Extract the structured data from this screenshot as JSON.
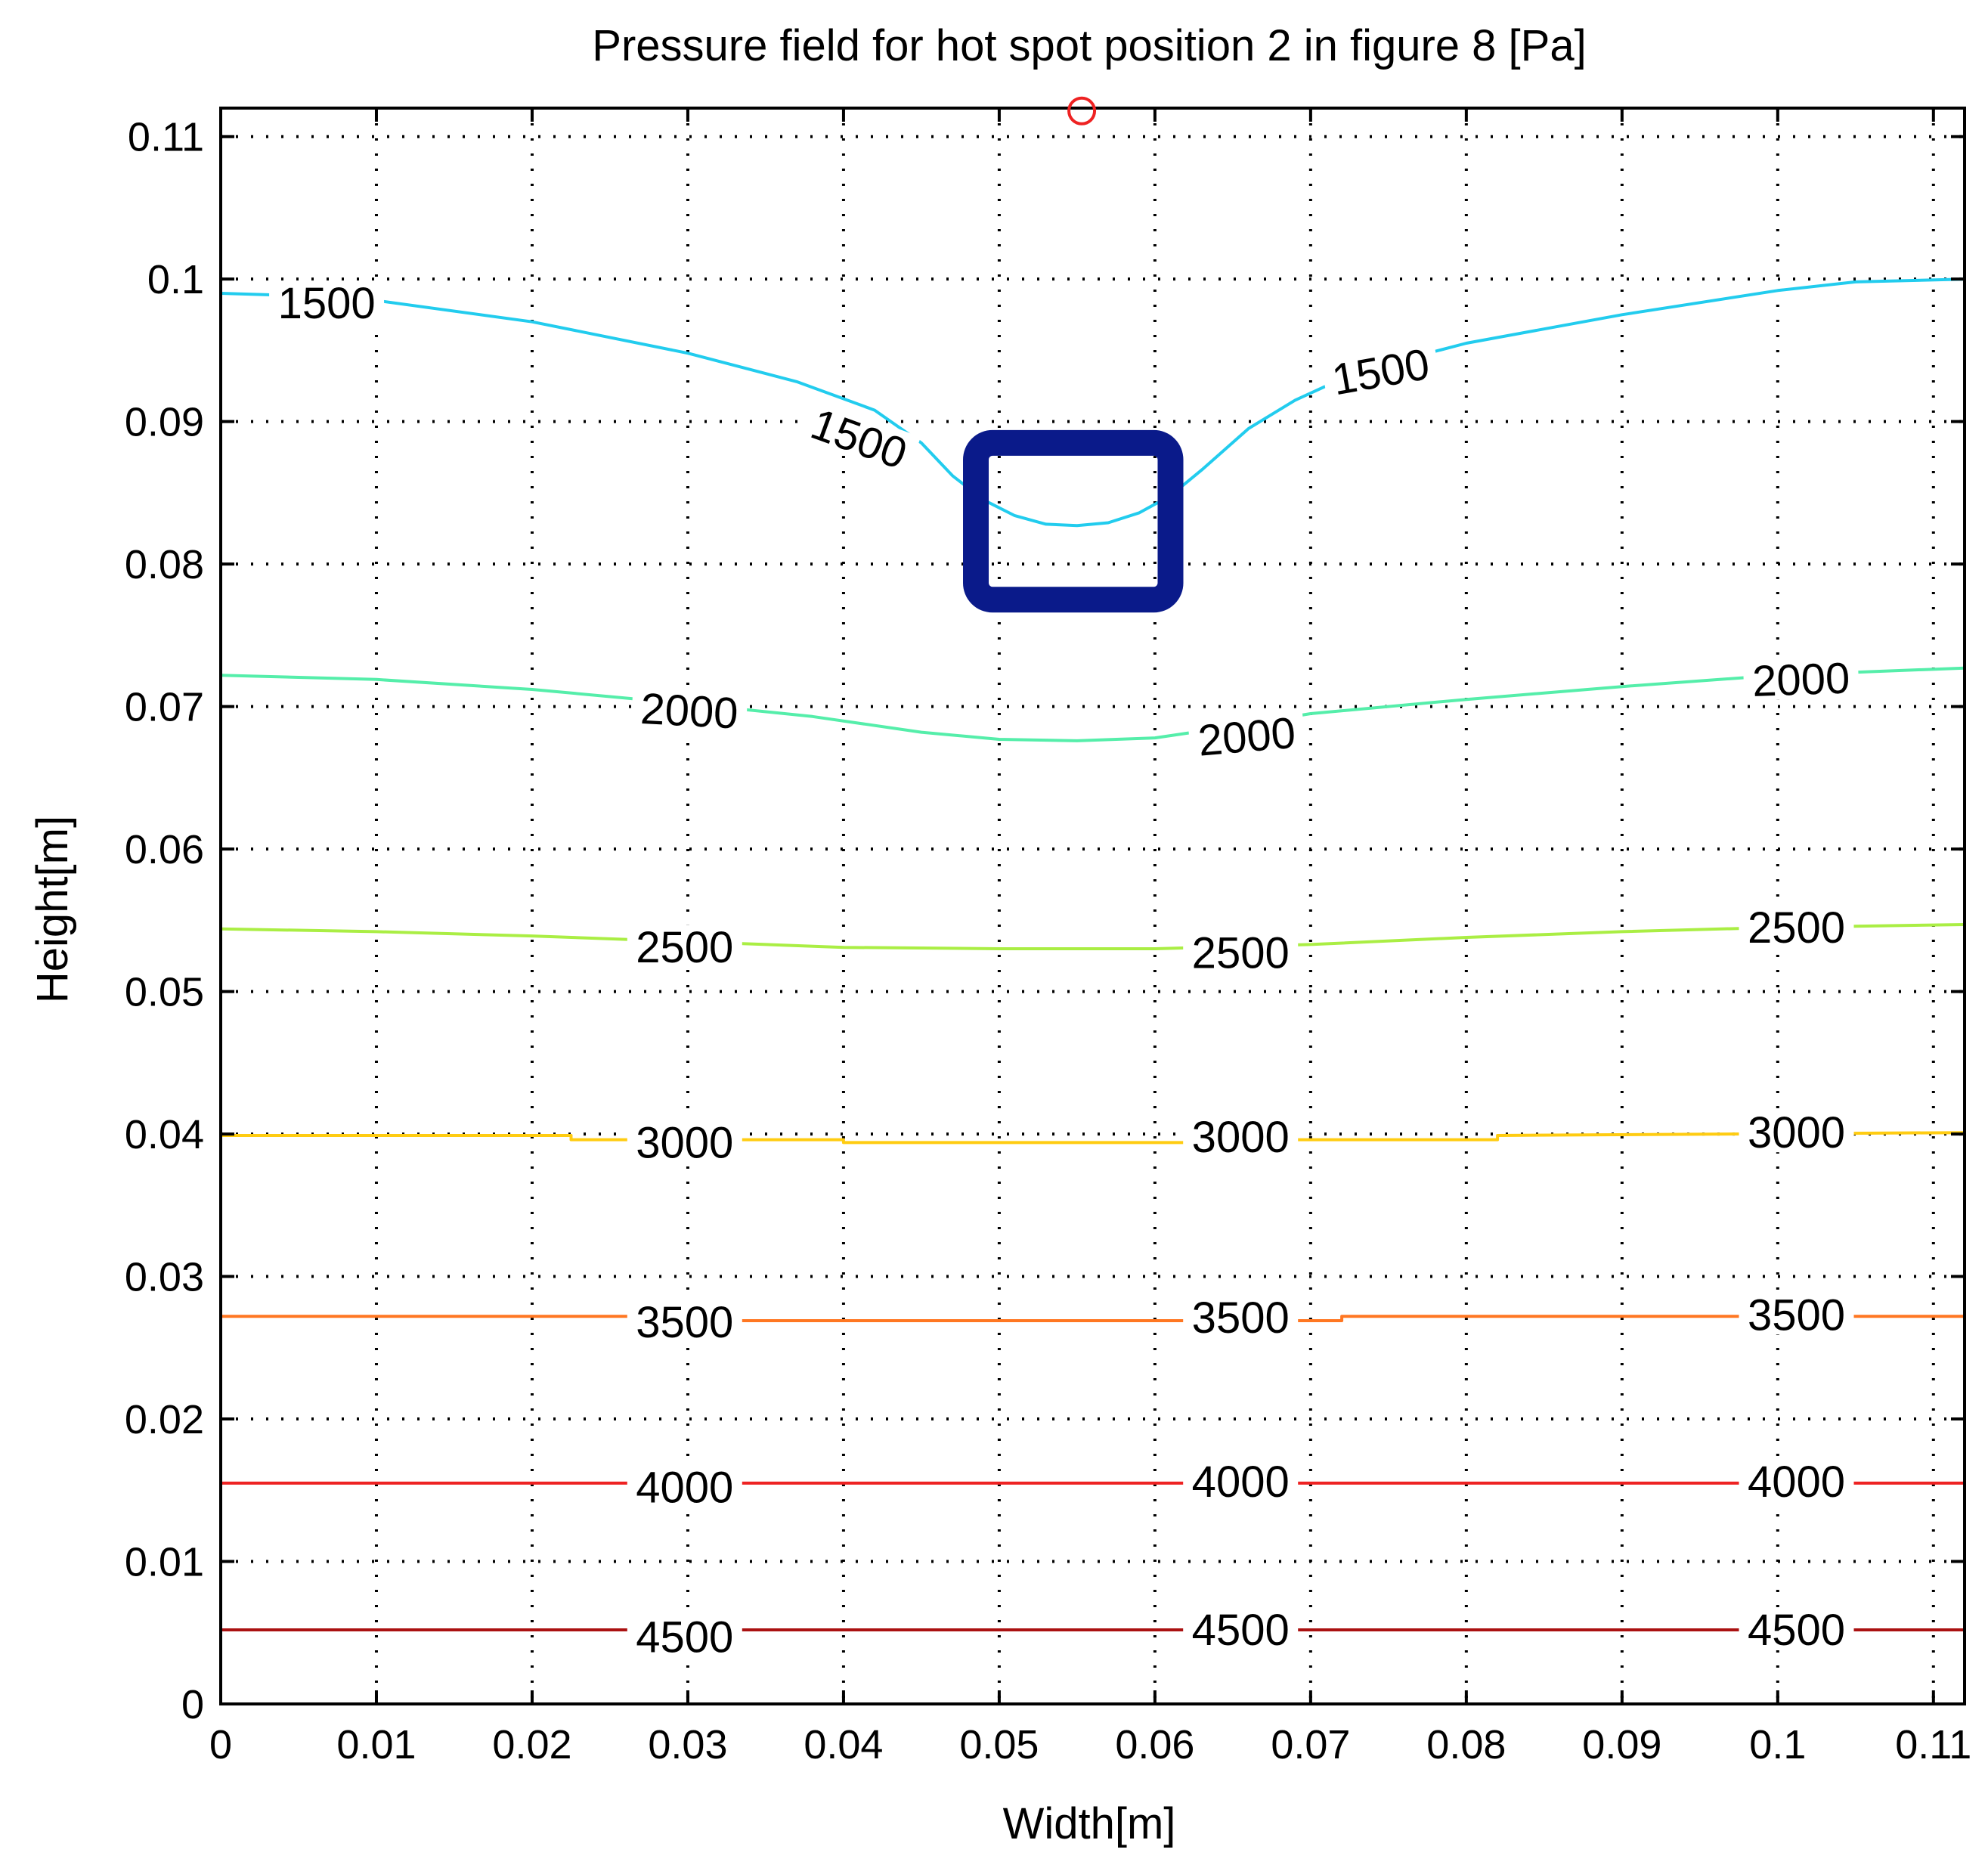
{
  "chart_data": {
    "type": "contour",
    "title": "Pressure field for hot spot position 2 in figure 8 [Pa]",
    "xlabel": "Width[m]",
    "ylabel": "Height[m]",
    "xlim": [
      0,
      0.112
    ],
    "ylim": [
      0,
      0.112
    ],
    "xticks": [
      0,
      0.01,
      0.02,
      0.03,
      0.04,
      0.05,
      0.06,
      0.07,
      0.08,
      0.09,
      0.1,
      0.11
    ],
    "xtick_labels": [
      "0",
      "0.01",
      "0.02",
      "0.03",
      "0.04",
      "0.05",
      "0.06",
      "0.07",
      "0.08",
      "0.09",
      "0.1",
      "0.11"
    ],
    "yticks": [
      0,
      0.01,
      0.02,
      0.03,
      0.04,
      0.05,
      0.06,
      0.07,
      0.08,
      0.09,
      0.1,
      0.11
    ],
    "ytick_labels": [
      "0",
      "0.01",
      "0.02",
      "0.03",
      "0.04",
      "0.05",
      "0.06",
      "0.07",
      "0.08",
      "0.09",
      "0.1",
      "0.11"
    ],
    "grid": true,
    "grid_style": "dotted",
    "contours": [
      {
        "level": 1500,
        "color": "#22ccee",
        "points": [
          [
            0,
            0.099
          ],
          [
            0.003,
            0.0989
          ],
          [
            0.01,
            0.0985
          ],
          [
            0.02,
            0.097
          ],
          [
            0.03,
            0.0948
          ],
          [
            0.037,
            0.0928
          ],
          [
            0.042,
            0.0908
          ],
          [
            0.045,
            0.0885
          ],
          [
            0.047,
            0.0862
          ],
          [
            0.049,
            0.0845
          ],
          [
            0.051,
            0.0834
          ],
          [
            0.053,
            0.0828
          ],
          [
            0.055,
            0.0827
          ],
          [
            0.057,
            0.0829
          ],
          [
            0.059,
            0.0836
          ],
          [
            0.061,
            0.0848
          ],
          [
            0.063,
            0.0866
          ],
          [
            0.066,
            0.0895
          ],
          [
            0.069,
            0.0915
          ],
          [
            0.073,
            0.0935
          ],
          [
            0.08,
            0.0955
          ],
          [
            0.09,
            0.0975
          ],
          [
            0.1,
            0.0992
          ],
          [
            0.105,
            0.0998
          ],
          [
            0.112,
            0.1
          ]
        ],
        "labels": [
          {
            "x": 0.0068,
            "y": 0.0983,
            "text": "1500",
            "angle": 0
          },
          {
            "x": 0.041,
            "y": 0.0888,
            "text": "1500",
            "angle": 20
          },
          {
            "x": 0.0745,
            "y": 0.0935,
            "text": "1500",
            "angle": -10
          }
        ]
      },
      {
        "level": 2000,
        "color": "#55eeaa",
        "points": [
          [
            0,
            0.0722
          ],
          [
            0.01,
            0.0719
          ],
          [
            0.02,
            0.0712
          ],
          [
            0.03,
            0.0702
          ],
          [
            0.038,
            0.0693
          ],
          [
            0.045,
            0.0682
          ],
          [
            0.05,
            0.0677
          ],
          [
            0.055,
            0.0676
          ],
          [
            0.06,
            0.0678
          ],
          [
            0.065,
            0.0686
          ],
          [
            0.07,
            0.0695
          ],
          [
            0.08,
            0.0705
          ],
          [
            0.09,
            0.0714
          ],
          [
            0.1,
            0.0722
          ],
          [
            0.112,
            0.0727
          ]
        ],
        "labels": [
          {
            "x": 0.0301,
            "y": 0.0697,
            "text": "2000",
            "angle": 3
          },
          {
            "x": 0.0659,
            "y": 0.0679,
            "text": "2000",
            "angle": -5
          },
          {
            "x": 0.1015,
            "y": 0.0719,
            "text": "2000",
            "angle": -2
          }
        ]
      },
      {
        "level": 2500,
        "color": "#aaee44",
        "points": [
          [
            0,
            0.0544
          ],
          [
            0.01,
            0.0542
          ],
          [
            0.02,
            0.0539
          ],
          [
            0.03,
            0.0535
          ],
          [
            0.04,
            0.0531
          ],
          [
            0.05,
            0.053
          ],
          [
            0.06,
            0.053
          ],
          [
            0.07,
            0.0533
          ],
          [
            0.08,
            0.0538
          ],
          [
            0.09,
            0.0542
          ],
          [
            0.1,
            0.0545
          ],
          [
            0.112,
            0.0547
          ]
        ],
        "labels": [
          {
            "x": 0.0298,
            "y": 0.0531,
            "text": "2500",
            "angle": 0
          },
          {
            "x": 0.0655,
            "y": 0.0527,
            "text": "2500",
            "angle": 0
          },
          {
            "x": 0.1012,
            "y": 0.0545,
            "text": "2500",
            "angle": 0
          }
        ]
      },
      {
        "level": 3000,
        "color": "#ffcc11",
        "points": [
          [
            0,
            0.0399
          ],
          [
            0.0225,
            0.0399
          ],
          [
            0.0225,
            0.0396
          ],
          [
            0.04,
            0.0396
          ],
          [
            0.04,
            0.0394
          ],
          [
            0.062,
            0.0394
          ],
          [
            0.068,
            0.0396
          ],
          [
            0.082,
            0.0396
          ],
          [
            0.082,
            0.0399
          ],
          [
            0.112,
            0.0401
          ]
        ],
        "labels": [
          {
            "x": 0.0298,
            "y": 0.0394,
            "text": "3000",
            "angle": 0
          },
          {
            "x": 0.0655,
            "y": 0.0398,
            "text": "3000",
            "angle": 0
          },
          {
            "x": 0.1012,
            "y": 0.0401,
            "text": "3000",
            "angle": 0
          }
        ]
      },
      {
        "level": 3500,
        "color": "#ff7722",
        "points": [
          [
            0,
            0.0272
          ],
          [
            0.032,
            0.0272
          ],
          [
            0.032,
            0.0269
          ],
          [
            0.062,
            0.0269
          ],
          [
            0.072,
            0.0269
          ],
          [
            0.072,
            0.0272
          ],
          [
            0.112,
            0.0272
          ]
        ],
        "labels": [
          {
            "x": 0.0298,
            "y": 0.0268,
            "text": "3500",
            "angle": 0
          },
          {
            "x": 0.0655,
            "y": 0.0271,
            "text": "3500",
            "angle": 0
          },
          {
            "x": 0.1012,
            "y": 0.0273,
            "text": "3500",
            "angle": 0
          }
        ]
      },
      {
        "level": 4000,
        "color": "#ee2222",
        "points": [
          [
            0,
            0.0155
          ],
          [
            0.112,
            0.0155
          ]
        ],
        "labels": [
          {
            "x": 0.0298,
            "y": 0.0152,
            "text": "4000",
            "angle": 0
          },
          {
            "x": 0.0655,
            "y": 0.0156,
            "text": "4000",
            "angle": 0
          },
          {
            "x": 0.1012,
            "y": 0.0156,
            "text": "4000",
            "angle": 0
          }
        ]
      },
      {
        "level": 4500,
        "color": "#aa1111",
        "points": [
          [
            0,
            0.0052
          ],
          [
            0.112,
            0.0052
          ]
        ],
        "labels": [
          {
            "x": 0.0298,
            "y": 0.0047,
            "text": "4500",
            "angle": 0
          },
          {
            "x": 0.0655,
            "y": 0.0052,
            "text": "4500",
            "angle": 0
          },
          {
            "x": 0.1012,
            "y": 0.0052,
            "text": "4500",
            "angle": 0
          }
        ]
      }
    ],
    "hot_spot": {
      "x": [
        0.0485,
        0.061
      ],
      "y": [
        0.0775,
        0.0885
      ],
      "color": "#0a1a8a"
    },
    "marker": {
      "x": 0.0553,
      "y": 0.1118,
      "shape": "circle",
      "color": "#ee2222"
    }
  }
}
